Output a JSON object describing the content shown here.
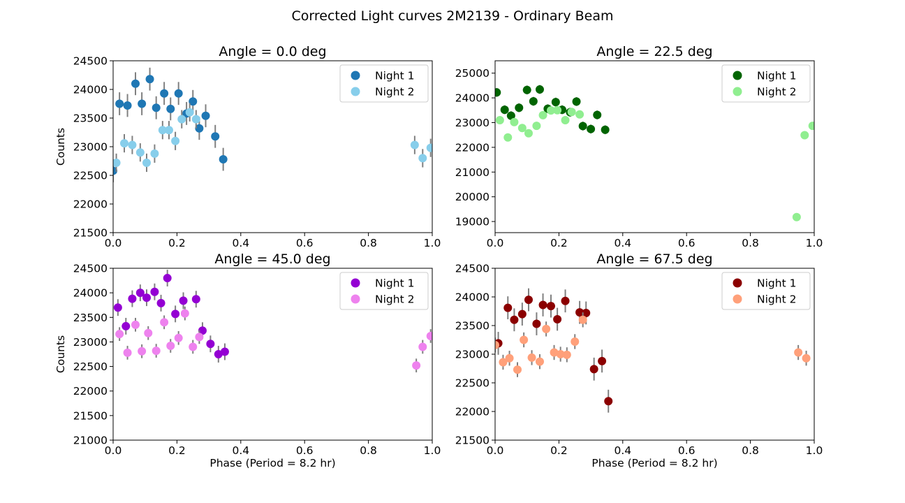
{
  "figure_title": "Corrected Light curves 2M2139 - Ordinary Beam",
  "chart_data": [
    {
      "type": "scatter",
      "title": "Angle = 0.0 deg",
      "xlabel": "",
      "ylabel": "Counts",
      "xlim": [
        0.0,
        1.0
      ],
      "ylim": [
        21500,
        24500
      ],
      "xticks": [
        "0.0",
        "0.2",
        "0.4",
        "0.6",
        "0.8",
        "1.0"
      ],
      "yticks": [
        "21500",
        "22000",
        "22500",
        "23000",
        "23500",
        "24000",
        "24500"
      ],
      "legend_position": "upper right",
      "grid": false,
      "series": [
        {
          "name": "Night 1",
          "color": "#1f77b4",
          "x": [
            0.0,
            0.02,
            0.045,
            0.07,
            0.09,
            0.115,
            0.135,
            0.16,
            0.18,
            0.205,
            0.23,
            0.25,
            0.27,
            0.29,
            0.32,
            0.345
          ],
          "y": [
            22580,
            23750,
            23720,
            24100,
            23750,
            24180,
            23680,
            23930,
            23660,
            23930,
            23580,
            23790,
            23320,
            23540,
            23180,
            22780
          ],
          "err": 200
        },
        {
          "name": "Night 2",
          "color": "#87ceeb",
          "x": [
            0.01,
            0.035,
            0.06,
            0.085,
            0.105,
            0.13,
            0.155,
            0.175,
            0.195,
            0.215,
            0.24,
            0.26,
            0.945,
            0.97,
            0.995
          ],
          "y": [
            22720,
            23060,
            23030,
            22900,
            22720,
            22880,
            23290,
            23290,
            23100,
            23480,
            23600,
            23480,
            23030,
            22800,
            22980
          ],
          "err": 160
        }
      ]
    },
    {
      "type": "scatter",
      "title": "Angle = 22.5 deg",
      "xlabel": "",
      "ylabel": "",
      "xlim": [
        0.0,
        1.0
      ],
      "ylim": [
        18550,
        25500
      ],
      "xticks": [
        "0.0",
        "0.2",
        "0.4",
        "0.6",
        "0.8",
        "1.0"
      ],
      "yticks": [
        "19000",
        "20000",
        "21000",
        "22000",
        "23000",
        "24000",
        "25000"
      ],
      "legend_position": "upper right",
      "grid": false,
      "series": [
        {
          "name": "Night 1",
          "color": "#006400",
          "x": [
            0.005,
            0.03,
            0.05,
            0.075,
            0.1,
            0.12,
            0.14,
            0.165,
            0.19,
            0.21,
            0.235,
            0.255,
            0.275,
            0.3,
            0.32,
            0.345
          ],
          "y": [
            24220,
            23520,
            23280,
            23600,
            24320,
            23860,
            24340,
            23560,
            23830,
            23520,
            23420,
            23850,
            22860,
            22740,
            23310,
            22710
          ],
          "err": 180
        },
        {
          "name": "Night 2",
          "color": "#90ee90",
          "x": [
            0.015,
            0.04,
            0.06,
            0.085,
            0.105,
            0.13,
            0.15,
            0.175,
            0.195,
            0.22,
            0.24,
            0.265,
            0.945,
            0.97,
            0.995
          ],
          "y": [
            23100,
            22400,
            23020,
            22780,
            22570,
            22870,
            23300,
            23490,
            23500,
            23100,
            23430,
            23330,
            19180,
            22490,
            22870
          ],
          "err": 160
        }
      ]
    },
    {
      "type": "scatter",
      "title": "Angle = 45.0 deg",
      "xlabel": "Phase (Period = 8.2 hr)",
      "ylabel": "Counts",
      "xlim": [
        0.0,
        1.0
      ],
      "ylim": [
        21000,
        24500
      ],
      "xticks": [
        "0.0",
        "0.2",
        "0.4",
        "0.6",
        "0.8",
        "1.0"
      ],
      "yticks": [
        "21000",
        "21500",
        "22000",
        "22500",
        "23000",
        "23500",
        "24000",
        "24500"
      ],
      "legend_position": "upper right",
      "grid": false,
      "series": [
        {
          "name": "Night 1",
          "color": "#9400d3",
          "x": [
            0.015,
            0.04,
            0.06,
            0.085,
            0.105,
            0.13,
            0.15,
            0.17,
            0.195,
            0.22,
            0.26,
            0.28,
            0.305,
            0.33,
            0.35
          ],
          "y": [
            23700,
            23320,
            23880,
            24000,
            23900,
            24020,
            23790,
            24300,
            23570,
            23840,
            23870,
            23230,
            22960,
            22750,
            22800
          ],
          "err": 170
        },
        {
          "name": "Night 2",
          "color": "#ee82ee",
          "x": [
            0.02,
            0.045,
            0.07,
            0.09,
            0.11,
            0.135,
            0.16,
            0.18,
            0.205,
            0.225,
            0.25,
            0.27,
            0.95,
            0.97,
            0.995
          ],
          "y": [
            23160,
            22780,
            23350,
            22810,
            23180,
            22820,
            23400,
            22920,
            23080,
            23580,
            22900,
            23100,
            22520,
            22900,
            23120
          ],
          "err": 140
        }
      ]
    },
    {
      "type": "scatter",
      "title": "Angle = 67.5 deg",
      "xlabel": "Phase (Period = 8.2 hr)",
      "ylabel": "",
      "xlim": [
        0.0,
        1.0
      ],
      "ylim": [
        21500,
        24500
      ],
      "xticks": [
        "0.0",
        "0.2",
        "0.4",
        "0.6",
        "0.8",
        "1.0"
      ],
      "yticks": [
        "21500",
        "22000",
        "22500",
        "23000",
        "23500",
        "24000",
        "24500"
      ],
      "legend_position": "upper right",
      "grid": false,
      "series": [
        {
          "name": "Night 1",
          "color": "#8b0000",
          "x": [
            0.01,
            0.04,
            0.06,
            0.085,
            0.105,
            0.13,
            0.15,
            0.175,
            0.195,
            0.22,
            0.265,
            0.285,
            0.31,
            0.335,
            0.355
          ],
          "y": [
            23190,
            23810,
            23600,
            23700,
            23950,
            23530,
            23860,
            23840,
            23610,
            23930,
            23730,
            23720,
            22740,
            22880,
            22180
          ],
          "err": 200
        },
        {
          "name": "Night 2",
          "color": "#ffa07a",
          "x": [
            0.0,
            0.025,
            0.045,
            0.07,
            0.09,
            0.115,
            0.14,
            0.16,
            0.185,
            0.205,
            0.225,
            0.25,
            0.275,
            0.95,
            0.975
          ],
          "y": [
            23160,
            22860,
            22930,
            22730,
            23250,
            22940,
            22870,
            23440,
            23030,
            23000,
            22990,
            23220,
            23600,
            23030,
            22930
          ],
          "err": 130
        }
      ]
    }
  ]
}
